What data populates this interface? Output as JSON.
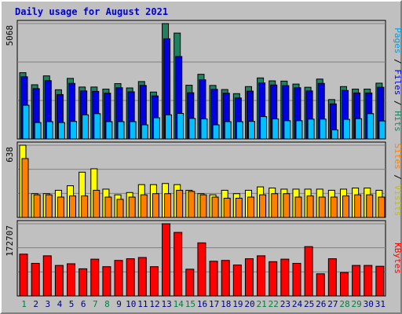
{
  "title": "Daily usage for August 2021",
  "chart_data": {
    "type": "bar",
    "days": [
      "1",
      "2",
      "3",
      "4",
      "5",
      "6",
      "7",
      "8",
      "9",
      "10",
      "11",
      "12",
      "13",
      "14",
      "15",
      "16",
      "17",
      "18",
      "19",
      "20",
      "21",
      "22",
      "23",
      "24",
      "25",
      "26",
      "27",
      "28",
      "29",
      "30",
      "31"
    ],
    "weekend_days": [
      "1",
      "7",
      "8",
      "14",
      "15",
      "21",
      "22",
      "28",
      "29"
    ],
    "panels": [
      {
        "id": "hits",
        "max_label": "5068",
        "max": 5068,
        "labels": [
          {
            "text": "Pages",
            "color": "#00a0e0"
          },
          {
            "text": " / ",
            "color": "#000000"
          },
          {
            "text": "Files",
            "color": "#0000e0"
          },
          {
            "text": " / ",
            "color": "#000000"
          },
          {
            "text": "Hits",
            "color": "#208060"
          }
        ],
        "series": [
          {
            "name": "Hits",
            "color": "#208060",
            "values": [
              2910,
              2380,
              2770,
              2160,
              2660,
              2280,
              2280,
              2190,
              2430,
              2240,
              2520,
              2060,
              5068,
              4650,
              2360,
              2840,
              2350,
              2170,
              1990,
              2300,
              2680,
              2550,
              2540,
              2410,
              2270,
              2630,
              1730,
              2300,
              2190,
              2190,
              2450
            ]
          },
          {
            "name": "Files",
            "color": "#0000e0",
            "values": [
              2730,
              2210,
              2560,
              1950,
              2440,
              2110,
              2090,
              2010,
              2250,
              2070,
              2350,
              1890,
              4400,
              3620,
              2030,
              2600,
              2180,
              2010,
              1800,
              2100,
              2460,
              2370,
              2340,
              2250,
              2110,
              2440,
              1540,
              2130,
              2020,
              2020,
              2270
            ]
          },
          {
            "name": "Pages",
            "color": "#00c0ff",
            "values": [
              1480,
              720,
              760,
              720,
              770,
              1060,
              1110,
              760,
              760,
              760,
              620,
              930,
              1060,
              1120,
              900,
              880,
              620,
              760,
              760,
              770,
              980,
              880,
              800,
              800,
              870,
              870,
              400,
              860,
              890,
              1110,
              790
            ]
          }
        ]
      },
      {
        "id": "visits",
        "max_label": "638",
        "max": 638,
        "labels": [
          {
            "text": "Sites",
            "color": "#ff8000"
          },
          {
            "text": " / ",
            "color": "#000000"
          },
          {
            "text": "Visits",
            "color": "#c0c000"
          }
        ],
        "series": [
          {
            "name": "Visits",
            "color": "#ffff00",
            "values": [
              638,
              210,
              210,
              240,
              280,
              400,
              430,
              250,
              200,
              220,
              290,
              290,
              300,
              290,
              240,
              210,
              200,
              240,
              210,
              240,
              270,
              260,
              250,
              250,
              250,
              250,
              240,
              250,
              260,
              260,
              240
            ]
          },
          {
            "name": "Sites",
            "color": "#ff8000",
            "values": [
              520,
              200,
              200,
              180,
              190,
              190,
              240,
              180,
              160,
              180,
              200,
              210,
              210,
              240,
              230,
              200,
              180,
              170,
              170,
              180,
              200,
              210,
              210,
              180,
              190,
              180,
              180,
              190,
              200,
              200,
              180
            ]
          }
        ]
      },
      {
        "id": "kbytes",
        "max_label": "172707",
        "max": 172707,
        "labels": [
          {
            "text": "KBytes",
            "color": "#ff0000"
          }
        ],
        "series": [
          {
            "name": "KBytes",
            "color": "#ff0000",
            "values": [
              100000,
              78000,
              96000,
              73000,
              77000,
              65000,
              88000,
              70000,
              85000,
              89000,
              92000,
              70000,
              172707,
              152000,
              64000,
              127000,
              83000,
              85000,
              74000,
              89000,
              96000,
              82000,
              88000,
              78000,
              118000,
              53000,
              89000,
              56000,
              73000,
              73000,
              71000
            ]
          }
        ]
      }
    ]
  }
}
